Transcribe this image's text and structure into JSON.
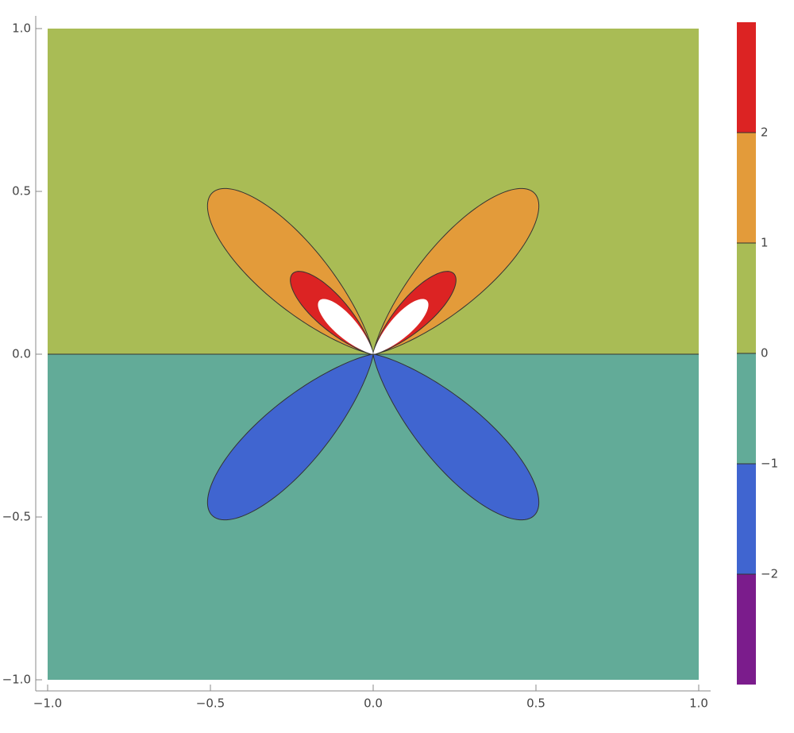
{
  "chart_data": {
    "type": "contour",
    "xlim": [
      -1,
      1
    ],
    "ylim": [
      -1,
      1
    ],
    "xticks": [
      {
        "value": -1,
        "label": "−1.0"
      },
      {
        "value": -0.5,
        "label": "−0.5"
      },
      {
        "value": 0,
        "label": "0.0"
      },
      {
        "value": 0.5,
        "label": "0.5"
      },
      {
        "value": 1,
        "label": "1.0"
      }
    ],
    "yticks": [
      {
        "value": -1,
        "label": "−1.0"
      },
      {
        "value": -0.5,
        "label": "−0.5"
      },
      {
        "value": 0,
        "label": "0.0"
      },
      {
        "value": 0.5,
        "label": "0.5"
      },
      {
        "value": 1,
        "label": "1.0"
      }
    ],
    "colorbar": {
      "lim": [
        -3,
        3
      ],
      "ticks": [
        {
          "value": -2,
          "label": "−2"
        },
        {
          "value": -1,
          "label": "−1"
        },
        0,
        1,
        2
      ],
      "colors": [
        "#7b1c8c",
        "#4065d0",
        "#62ab98",
        "#a9bc55",
        "#e39b3a",
        "#dc2323"
      ]
    }
  }
}
